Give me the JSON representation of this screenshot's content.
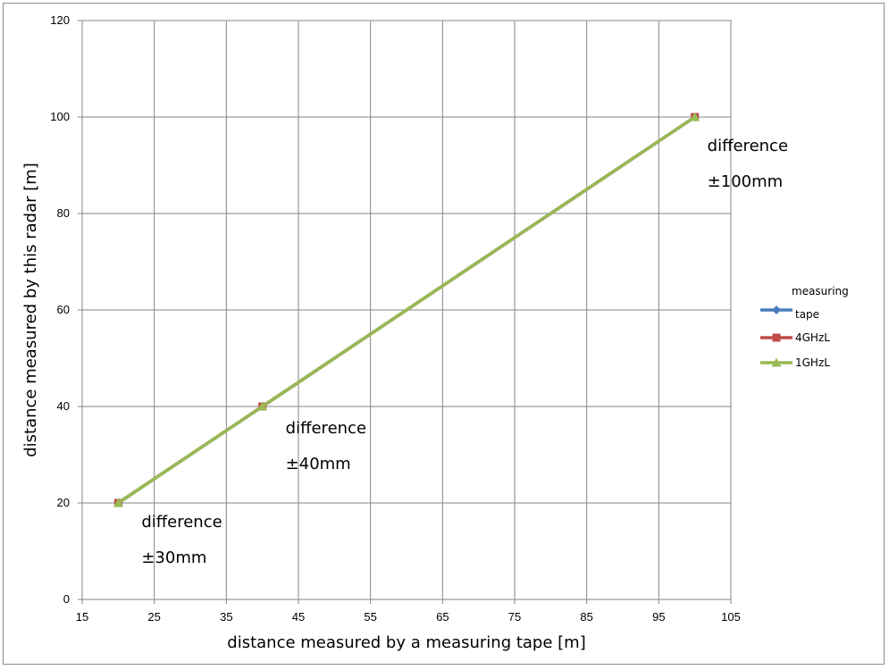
{
  "chart_data": {
    "type": "line",
    "title": "",
    "xlabel": "distance measured by a measuring tape [m]",
    "ylabel": "distance measured by this radar [m]",
    "xlim": [
      15,
      105
    ],
    "ylim": [
      0,
      120
    ],
    "x_ticks": [
      15,
      25,
      35,
      45,
      55,
      65,
      75,
      85,
      95,
      105
    ],
    "y_ticks": [
      0,
      20,
      40,
      60,
      80,
      100,
      120
    ],
    "grid": true,
    "legend_position": "right",
    "legend_title": "measuring",
    "series": [
      {
        "name": "tape",
        "color": "#4a7ebb",
        "marker": "diamond",
        "x": [
          20,
          40,
          100
        ],
        "y": [
          20,
          40,
          100
        ]
      },
      {
        "name": "4GHzL",
        "color": "#be4b48",
        "marker": "square",
        "x": [
          20,
          40,
          100
        ],
        "y": [
          20,
          40,
          100
        ]
      },
      {
        "name": "1GHzL",
        "color": "#98b954",
        "marker": "triangle",
        "x": [
          20,
          40,
          100
        ],
        "y": [
          20,
          40,
          100
        ]
      }
    ],
    "annotations": [
      {
        "line1": "difference",
        "line2": "±30mm",
        "x": 20,
        "y": 20
      },
      {
        "line1": "difference",
        "line2": "±40mm",
        "x": 40,
        "y": 40
      },
      {
        "line1": "difference",
        "line2": "±100mm",
        "x": 100,
        "y": 100
      }
    ]
  }
}
